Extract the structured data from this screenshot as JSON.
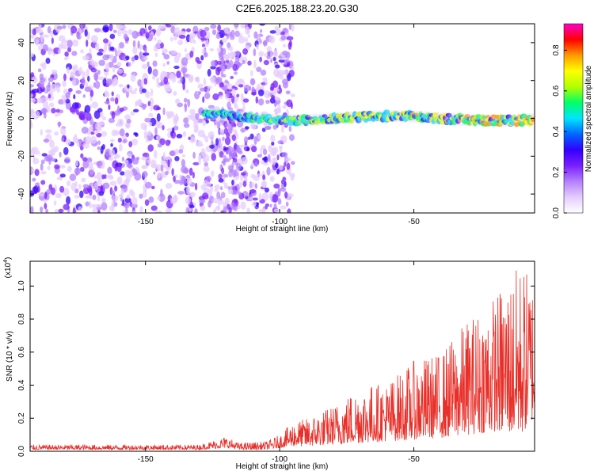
{
  "title": "C2E6.2025.188.23.20.G30",
  "chart_data": [
    {
      "type": "heatmap",
      "xlabel": "Height of straight line (km)",
      "ylabel": "Frequency (Hz)",
      "xlim": [
        -193,
        -5
      ],
      "ylim": [
        -50,
        50
      ],
      "xticks": [
        -150,
        -100,
        -50
      ],
      "yticks": [
        -40,
        -20,
        0,
        20,
        40
      ],
      "colorbar": {
        "label": "Normalized spectral amplitude",
        "range": [
          0,
          0.93
        ],
        "ticks": [
          0.0,
          0.2,
          0.4,
          0.6,
          0.8
        ],
        "colormap": [
          "#ffffff",
          "#e6ccff",
          "#b380ff",
          "#7a1fff",
          "#3300ff",
          "#0066ff",
          "#00e5ff",
          "#00ff66",
          "#b3ff00",
          "#ffff00",
          "#ff9900",
          "#ff0000",
          "#ff00cc"
        ]
      },
      "description_features": {
        "noise_region_x": [
          -193,
          -100
        ],
        "ridge_start_x": -128,
        "ridge_frequency_hz": 0,
        "ridge_frequency_end_hz": 0
      },
      "grid": false
    },
    {
      "type": "line",
      "xlabel": "Height of straight line (km)",
      "ylabel": "SNR (10 * v/v)",
      "scale_label": "(x10^4)",
      "xlim": [
        -193,
        -5
      ],
      "ylim": [
        0,
        1.15
      ],
      "xticks": [
        -150,
        -100,
        -50
      ],
      "yticks": [
        0.0,
        0.2,
        0.4,
        0.6,
        0.8,
        1.0
      ],
      "series": [
        {
          "color": "#e8302a",
          "envelope": {
            "x": [
              -193,
              -130,
              -120,
              -115,
              -105,
              -100,
              -95,
              -90,
              -80,
              -70,
              -60,
              -50,
              -40,
              -30,
              -20,
              -10,
              -5
            ],
            "max": [
              0.04,
              0.04,
              0.09,
              0.05,
              0.06,
              0.1,
              0.18,
              0.2,
              0.28,
              0.4,
              0.42,
              0.55,
              0.6,
              0.8,
              0.95,
              1.15,
              1.05
            ],
            "min": [
              0.01,
              0.01,
              0.02,
              0.01,
              0.01,
              0.02,
              0.03,
              0.03,
              0.04,
              0.05,
              0.06,
              0.07,
              0.08,
              0.1,
              0.12,
              0.1,
              0.2
            ]
          }
        }
      ],
      "grid": false
    }
  ]
}
